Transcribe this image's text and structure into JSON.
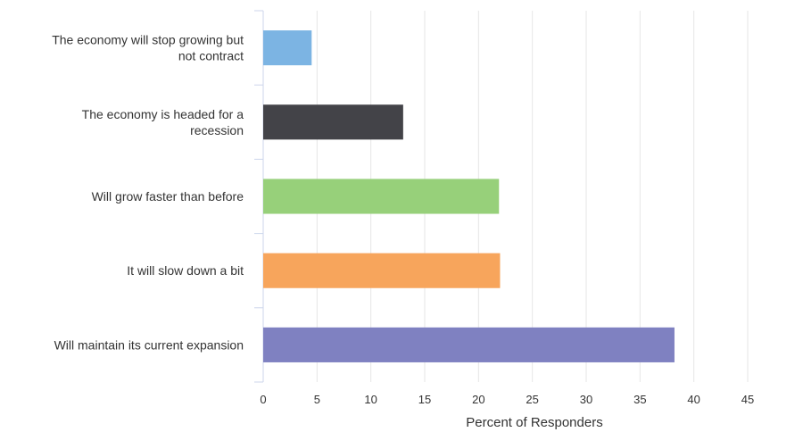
{
  "chart_data": {
    "type": "bar",
    "orientation": "horizontal",
    "categories": [
      [
        "The economy will stop growing but",
        "not contract"
      ],
      [
        "The economy is headed for a",
        "recession"
      ],
      [
        "Will grow faster than before"
      ],
      [
        "It will slow down a bit"
      ],
      [
        "Will maintain its current expansion"
      ]
    ],
    "values": [
      4.5,
      13,
      21.9,
      22,
      38.2
    ],
    "colors": [
      "#7cb4e3",
      "#434348",
      "#97d07a",
      "#f7a55c",
      "#7f81c1"
    ],
    "xlabel": "Percent of Responders",
    "xlim": [
      0,
      45
    ],
    "xticks": [
      "0",
      "5",
      "10",
      "15",
      "20",
      "25",
      "30",
      "35",
      "40",
      "45"
    ],
    "grid": true,
    "legend": "none"
  }
}
